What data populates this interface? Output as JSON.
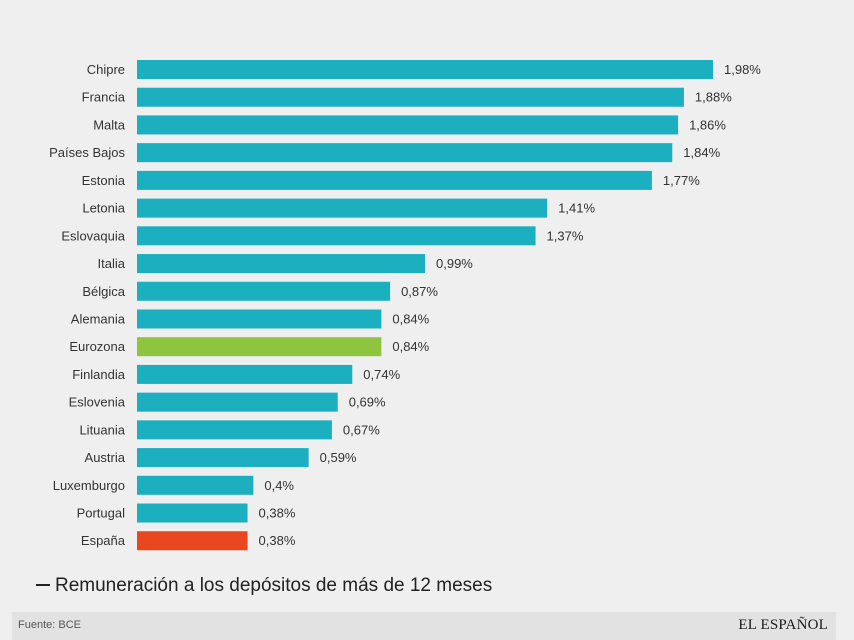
{
  "chart_data": {
    "type": "bar",
    "orientation": "horizontal",
    "categories": [
      "Chipre",
      "Francia",
      "Malta",
      "Países Bajos",
      "Estonia",
      "Letonia",
      "Eslovaquia",
      "Italia",
      "Bélgica",
      "Alemania",
      "Eurozona",
      "Finlandia",
      "Eslovenia",
      "Lituania",
      "Austria",
      "Luxemburgo",
      "Portugal",
      "España"
    ],
    "values": [
      1.98,
      1.88,
      1.86,
      1.84,
      1.77,
      1.41,
      1.37,
      0.99,
      0.87,
      0.84,
      0.84,
      0.74,
      0.69,
      0.67,
      0.59,
      0.4,
      0.38,
      0.38
    ],
    "value_labels": [
      "1,98%",
      "1,88%",
      "1,86%",
      "1,84%",
      "1,77%",
      "1,41%",
      "1,37%",
      "0,99%",
      "0,87%",
      "0,84%",
      "0,84%",
      "0,74%",
      "0,69%",
      "0,67%",
      "0,59%",
      "0,4%",
      "0,38%",
      "0,38%"
    ],
    "xlim": [
      0,
      1.98
    ],
    "grid": false,
    "colors": {
      "default": "#1bafbf",
      "highlights": {
        "Eurozona": "#8dc53f",
        "España": "#e8461f"
      }
    }
  },
  "legend": {
    "text": "Remuneración a los depósitos de más de 12 meses"
  },
  "footer": {
    "source": "Fuente: BCE",
    "brand": "EL ESPAÑOL"
  }
}
